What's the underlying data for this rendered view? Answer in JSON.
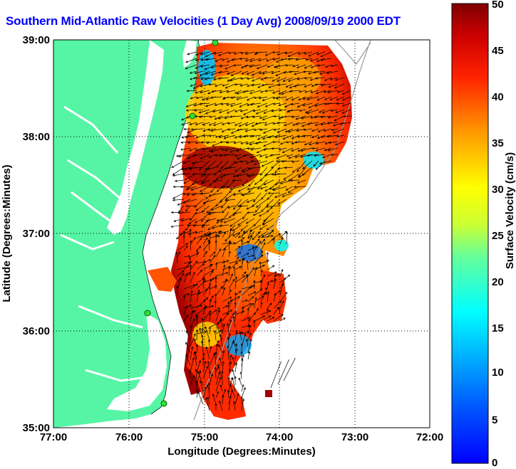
{
  "title": "Southern Mid-Atlantic Raw Velocities (1 Day Avg) 2008/09/19 2000 EDT",
  "map": {
    "xlabel": "Longitude (Degrees:Minutes)",
    "ylabel": "Latitude (Degrees:Minutes)",
    "xticks": [
      "77:00",
      "76:00",
      "75:00",
      "74:00",
      "73:00",
      "72:00"
    ],
    "yticks": [
      "39:00",
      "38:00",
      "37:00",
      "36:00",
      "35:00"
    ],
    "lon_range": [
      -77,
      -72
    ],
    "lat_range": [
      35,
      39
    ],
    "land_color": "#55f5a5",
    "station_color": "#33dd33"
  },
  "colorbar": {
    "label": "Surface Velocity (cm/s)",
    "ticks": [
      "0",
      "5",
      "10",
      "15",
      "20",
      "25",
      "30",
      "35",
      "40",
      "45",
      "50"
    ],
    "range": [
      0,
      50
    ],
    "colormap": "jet"
  }
}
